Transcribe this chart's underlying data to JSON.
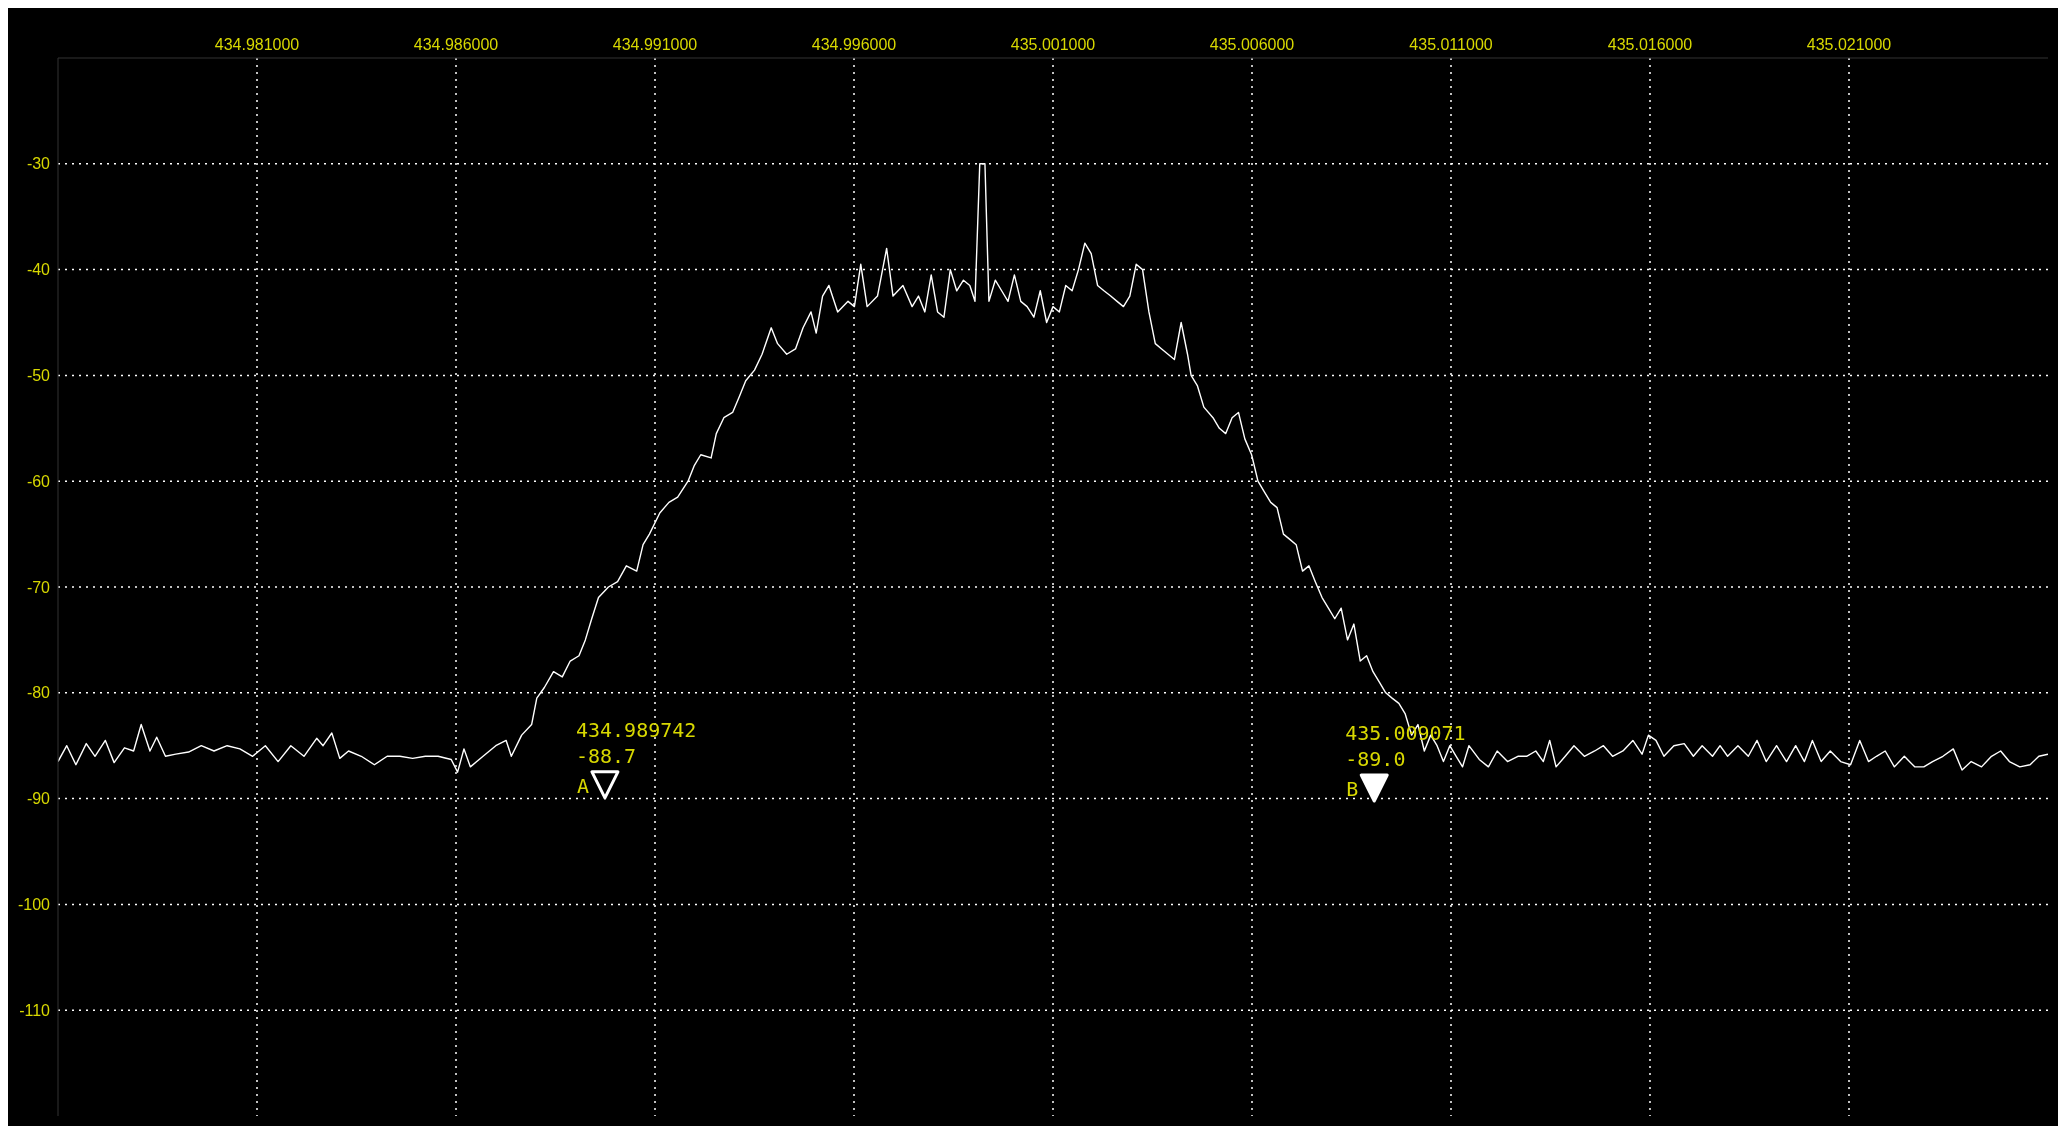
{
  "chart_data": {
    "type": "line",
    "color": "#ffffff",
    "grid": true,
    "xlim": [
      434.976,
      435.026
    ],
    "xticks": [
      {
        "value": 434.981,
        "label": "434.981000"
      },
      {
        "value": 434.986,
        "label": "434.986000"
      },
      {
        "value": 434.991,
        "label": "434.991000"
      },
      {
        "value": 434.996,
        "label": "434.996000"
      },
      {
        "value": 435.001,
        "label": "435.001000"
      },
      {
        "value": 435.006,
        "label": "435.006000"
      },
      {
        "value": 435.011,
        "label": "435.011000"
      },
      {
        "value": 435.016,
        "label": "435.016000"
      },
      {
        "value": 435.021,
        "label": "435.021000"
      }
    ],
    "ylim": [
      -120,
      -20
    ],
    "yticks": [
      -110,
      -100,
      -90,
      -80,
      -70,
      -60,
      -50,
      -40,
      -30
    ],
    "series": [
      {
        "x": [
          434.976,
          434.97622,
          434.97645,
          434.97671,
          434.97693,
          434.97719,
          434.97741,
          434.97767,
          434.9779,
          434.97809,
          434.97831,
          434.97848,
          434.9787,
          434.97896,
          434.97928,
          434.9796,
          434.97992,
          434.98025,
          434.98057,
          434.98089,
          434.98121,
          434.98153,
          434.98185,
          434.98218,
          434.9825,
          434.98266,
          434.98288,
          434.98308,
          434.9833,
          434.98362,
          434.98395,
          434.98427,
          434.98459,
          434.98491,
          434.98523,
          434.98555,
          434.98588,
          434.98604,
          434.9862,
          434.98636,
          434.98668,
          434.987,
          434.98726,
          434.98739,
          434.98765,
          434.9879,
          434.98803,
          434.98822,
          434.98845,
          434.98867,
          434.98887,
          434.98909,
          434.98925,
          434.98941,
          434.98958,
          434.98983,
          434.99006,
          434.99028,
          434.99054,
          434.9907,
          434.99086,
          434.99112,
          434.99135,
          434.99157,
          434.99183,
          434.99199,
          434.99215,
          434.99241,
          434.99254,
          434.99273,
          434.99295,
          434.99312,
          434.99328,
          434.9935,
          434.99369,
          434.99392,
          434.99408,
          434.99431,
          434.99453,
          434.99472,
          434.99492,
          434.99505,
          434.99521,
          434.99537,
          434.99559,
          434.99585,
          434.99601,
          434.99617,
          434.99633,
          434.99659,
          434.99682,
          434.99698,
          434.99723,
          434.99746,
          434.99762,
          434.99778,
          434.99794,
          434.9981,
          434.99826,
          434.99842,
          434.99858,
          434.99875,
          434.99891,
          434.99904,
          434.99916,
          434.99929,
          434.99939,
          434.99955,
          434.99971,
          434.99987,
          435.00003,
          435.00019,
          435.00035,
          435.00052,
          435.00068,
          435.00084,
          435.001,
          435.00116,
          435.00132,
          435.00148,
          435.00164,
          435.0018,
          435.00196,
          435.00212,
          435.00228,
          435.00245,
          435.00261,
          435.00277,
          435.00293,
          435.00309,
          435.00325,
          435.00341,
          435.00357,
          435.00373,
          435.00389,
          435.00405,
          435.00422,
          435.00438,
          435.00447,
          435.00463,
          435.00479,
          435.00502,
          435.00518,
          435.00534,
          435.0055,
          435.00566,
          435.00582,
          435.00599,
          435.00615,
          435.00631,
          435.00647,
          435.00663,
          435.00679,
          435.00695,
          435.00711,
          435.00727,
          435.00743,
          435.00759,
          435.00776,
          435.00792,
          435.00808,
          435.00824,
          435.0084,
          435.00856,
          435.00872,
          435.00888,
          435.00904,
          435.0092,
          435.00936,
          435.00952,
          435.00969,
          435.00985,
          435.01001,
          435.01017,
          435.01033,
          435.01049,
          435.01065,
          435.01081,
          435.01097,
          435.01113,
          435.01129,
          435.01145,
          435.01171,
          435.01194,
          435.01216,
          435.01242,
          435.01268,
          435.0129,
          435.01313,
          435.01332,
          435.01348,
          435.01364,
          435.01387,
          435.01409,
          435.01435,
          435.01461,
          435.01483,
          435.01506,
          435.01532,
          435.01557,
          435.0158,
          435.01596,
          435.01615,
          435.01635,
          435.0166,
          435.01686,
          435.01709,
          435.01731,
          435.01757,
          435.01776,
          435.01795,
          435.01821,
          435.01847,
          435.01869,
          435.01892,
          435.01918,
          435.01943,
          435.01966,
          435.01988,
          435.02008,
          435.0203,
          435.02053,
          435.02079,
          435.02104,
          435.02127,
          435.02149,
          435.02169,
          435.02191,
          435.02214,
          435.02239,
          435.02265,
          435.02288,
          435.0231,
          435.02336,
          435.02362,
          435.02384,
          435.02407,
          435.02433,
          435.02458,
          435.02481,
          435.02503,
          435.02529,
          435.02555,
          435.02577,
          435.026
        ],
        "values": [
          -86.5,
          -85,
          -86.8,
          -84.8,
          -86,
          -84.5,
          -86.6,
          -85.2,
          -85.5,
          -83,
          -85.5,
          -84.2,
          -86,
          -85.8,
          -85.6,
          -85,
          -85.5,
          -85,
          -85.3,
          -86,
          -85,
          -86.5,
          -85,
          -86,
          -84.3,
          -85,
          -83.8,
          -86.2,
          -85.5,
          -86,
          -86.8,
          -86,
          -86,
          -86.2,
          -86,
          -86,
          -86.3,
          -87.5,
          -85.3,
          -87,
          -86,
          -85,
          -84.5,
          -86,
          -84,
          -83,
          -80.5,
          -79.5,
          -78,
          -78.5,
          -77,
          -76.5,
          -75,
          -73,
          -71,
          -70,
          -69.5,
          -68,
          -68.5,
          -66,
          -65,
          -63,
          -62,
          -61.5,
          -60,
          -58.5,
          -57.5,
          -57.8,
          -55.5,
          -54,
          -53.5,
          -52,
          -50.5,
          -49.5,
          -48,
          -45.5,
          -47,
          -48,
          -47.5,
          -45.5,
          -44,
          -46,
          -42.5,
          -41.5,
          -44,
          -43,
          -43.5,
          -39.5,
          -43.5,
          -42.5,
          -38,
          -42.5,
          -41.5,
          -43.5,
          -42.5,
          -44,
          -40.5,
          -44,
          -44.5,
          -40,
          -42,
          -41,
          -41.5,
          -43,
          -30,
          -30,
          -43,
          -41,
          -42,
          -43,
          -40.5,
          -43,
          -43.5,
          -44.5,
          -42,
          -45,
          -43.5,
          -44,
          -41.5,
          -42,
          -40,
          -37.5,
          -38.5,
          -41.5,
          -42,
          -42.5,
          -43,
          -43.5,
          -42.5,
          -39.5,
          -40,
          -44,
          -47,
          -47.5,
          -48,
          -48.5,
          -45,
          -48,
          -50,
          -51,
          -53,
          -54,
          -55,
          -55.5,
          -54,
          -53.5,
          -56,
          -57.5,
          -60,
          -61,
          -62,
          -62.5,
          -65,
          -65.5,
          -66,
          -68.5,
          -68,
          -69.5,
          -71,
          -72,
          -73,
          -72,
          -75,
          -73.5,
          -77,
          -76.5,
          -78,
          -79,
          -80,
          -80.5,
          -81,
          -82,
          -84,
          -83,
          -85.5,
          -84,
          -85,
          -86.5,
          -85,
          -86,
          -87,
          -85,
          -86.3,
          -87,
          -85.5,
          -86.5,
          -86,
          -86,
          -85.5,
          -86.5,
          -84.5,
          -87,
          -86,
          -85,
          -86,
          -85.5,
          -85,
          -86,
          -85.5,
          -84.5,
          -85.8,
          -84,
          -84.5,
          -86,
          -85,
          -84.8,
          -86,
          -85,
          -86,
          -85,
          -86,
          -85,
          -86,
          -84.5,
          -86.5,
          -85,
          -86.5,
          -85,
          -86.5,
          -84.5,
          -86.5,
          -85.5,
          -86.5,
          -86.8,
          -84.5,
          -86.5,
          -86,
          -85.5,
          -87,
          -86,
          -87,
          -87,
          -86.5,
          -86,
          -85.3,
          -87.3,
          -86.5,
          -87,
          -86,
          -85.5,
          -86.5,
          -87,
          -86.8,
          -86,
          -85.8
        ]
      },
      {
        "type": "scatter",
        "name": "A",
        "color": "#ffffff",
        "marker": "triangle",
        "x": [
          434.989742
        ],
        "values": [
          -88.7
        ],
        "value_labels": [
          "434.989742\n-88.7"
        ]
      },
      {
        "type": "scatter",
        "name": "B",
        "color": "#ffffff",
        "marker": "triangle",
        "x": [
          435.009071
        ],
        "values": [
          -89.0
        ],
        "value_labels": [
          "435.009071\n-89.0"
        ]
      }
    ]
  }
}
